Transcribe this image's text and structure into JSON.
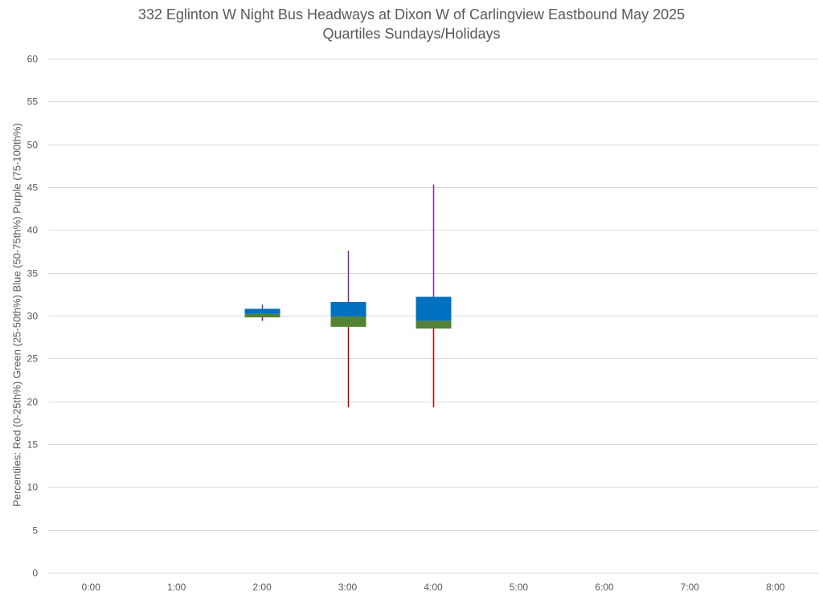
{
  "chart_data": {
    "type": "box",
    "title_line1": "332 Eglinton W Night Bus Headways at Dixon W of Carlingview Eastbound May 2025",
    "title_line2": "Quartiles Sundays/Holidays",
    "xlabel": "",
    "ylabel": "Percentiles:  Red (0-25th%)  Green (25-50th%)  Blue (50-75th%)  Purple (75-100th%)",
    "ylim": [
      0,
      60
    ],
    "ytick_step": 5,
    "grid": true,
    "categories": [
      "0:00",
      "1:00",
      "2:00",
      "3:00",
      "4:00",
      "5:00",
      "6:00",
      "7:00",
      "8:00"
    ],
    "series": [
      {
        "category": "2:00",
        "min": 29.4,
        "q1": 29.8,
        "median": 30.2,
        "q3": 30.8,
        "max": 31.3
      },
      {
        "category": "3:00",
        "min": 19.3,
        "q1": 28.7,
        "median": 29.9,
        "q3": 31.6,
        "max": 37.6
      },
      {
        "category": "4:00",
        "min": 19.3,
        "q1": 28.5,
        "median": 29.4,
        "q3": 32.2,
        "max": 45.3
      }
    ],
    "colors": {
      "q0_25": "#c00000",
      "q25_50": "#548235",
      "q50_75": "#0070c0",
      "q75_100": "#7030a0",
      "grid": "#d9d9d9",
      "text": "#595959"
    }
  }
}
